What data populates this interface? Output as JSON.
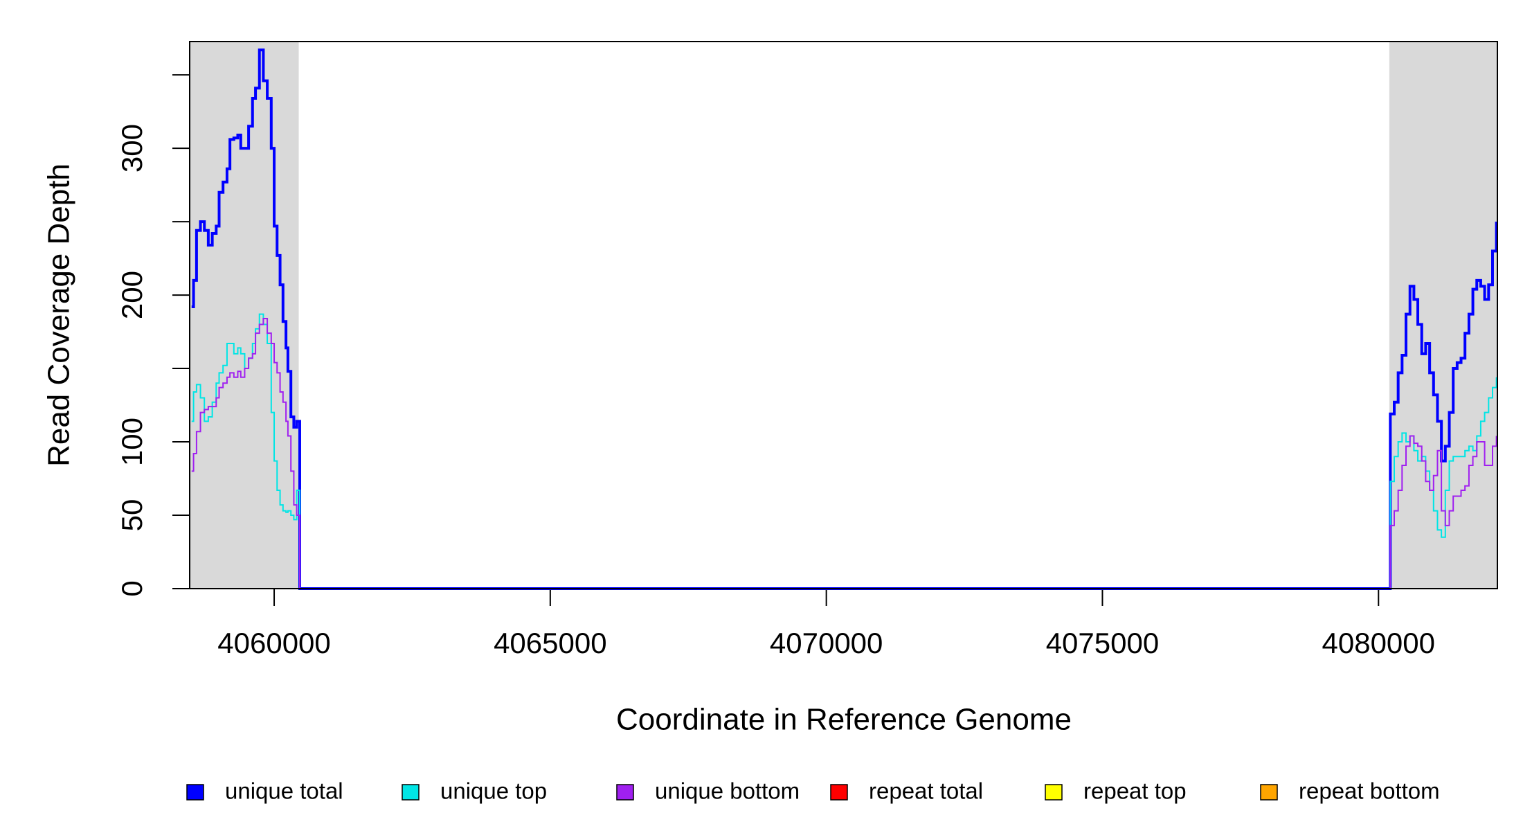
{
  "chart_data": {
    "type": "line",
    "step": true,
    "xlabel": "Coordinate in Reference Genome",
    "ylabel": "Read Coverage Depth",
    "xlim": [
      4058470,
      4082153
    ],
    "ylim": [
      0,
      372.7
    ],
    "xticks": [
      4060000,
      4065000,
      4070000,
      4075000,
      4080000
    ],
    "yticks": [
      0,
      50,
      100,
      200,
      300
    ],
    "yticks_unlabeled": [
      150,
      250,
      350
    ],
    "shaded_regions": [
      [
        4058470,
        4060445
      ],
      [
        4080196,
        4082153
      ]
    ],
    "shade_color": "#d9d9d9",
    "legend": "bottom",
    "x": [
      4058505,
      4058540,
      4058594,
      4058665,
      4058736,
      4058807,
      4058879,
      4058950,
      4059003,
      4059074,
      4059146,
      4059199,
      4059270,
      4059341,
      4059395,
      4059466,
      4059537,
      4059608,
      4059662,
      4059733,
      4059804,
      4059875,
      4059947,
      4060000,
      4060053,
      4060107,
      4060160,
      4060214,
      4060249,
      4060303,
      4060356,
      4060409,
      4060463,
      4080190,
      4080214,
      4080285,
      4080356,
      4080427,
      4080498,
      4080570,
      4080641,
      4080712,
      4080783,
      4080854,
      4080926,
      4080997,
      4081068,
      4081139,
      4081210,
      4081282,
      4081353,
      4081424,
      4081495,
      4081566,
      4081638,
      4081709,
      4081780,
      4081851,
      4081922,
      4081994,
      4082065,
      4082136
    ],
    "series": [
      {
        "name": "unique total",
        "color": "#0000ff",
        "values": [
          192,
          210,
          244,
          250,
          244,
          234,
          242,
          247,
          270,
          277,
          286,
          306,
          307,
          309,
          300,
          300,
          315,
          334,
          341,
          367,
          346,
          334,
          300,
          247,
          227,
          207,
          182,
          164,
          148,
          117,
          110,
          114,
          0,
          0,
          119,
          127,
          147,
          159,
          187,
          206,
          197,
          180,
          160,
          167,
          147,
          132,
          114,
          87,
          97,
          120,
          150,
          154,
          157,
          174,
          187,
          204,
          210,
          206,
          197,
          207,
          230,
          250
        ]
      },
      {
        "name": "unique top",
        "color": "#00e5e5",
        "values": [
          114,
          134,
          139,
          130,
          114,
          117,
          127,
          140,
          147,
          152,
          167,
          167,
          160,
          164,
          160,
          150,
          157,
          167,
          177,
          187,
          180,
          167,
          120,
          87,
          67,
          57,
          53,
          52,
          53,
          50,
          47,
          67,
          0,
          0,
          73,
          90,
          100,
          106,
          100,
          104,
          94,
          87,
          90,
          80,
          67,
          53,
          40,
          35,
          67,
          87,
          90,
          90,
          90,
          94,
          97,
          94,
          104,
          114,
          120,
          130,
          137,
          144
        ]
      },
      {
        "name": "unique bottom",
        "color": "#a020f0",
        "values": [
          80,
          92,
          107,
          120,
          122,
          124,
          124,
          130,
          137,
          140,
          144,
          147,
          144,
          148,
          144,
          150,
          157,
          160,
          174,
          180,
          184,
          174,
          167,
          154,
          147,
          134,
          127,
          114,
          104,
          80,
          57,
          50,
          0,
          0,
          43,
          53,
          67,
          84,
          97,
          104,
          99,
          97,
          87,
          73,
          67,
          77,
          94,
          53,
          43,
          53,
          63,
          63,
          67,
          70,
          84,
          90,
          100,
          100,
          84,
          84,
          97,
          104
        ]
      },
      {
        "name": "repeat total",
        "color": "#ff0000",
        "values": [
          0,
          0,
          0,
          0,
          0,
          0,
          0,
          0,
          0,
          0,
          0,
          0,
          0,
          0,
          0,
          0,
          0,
          0,
          0,
          0,
          0,
          0,
          0,
          0,
          0,
          0,
          0,
          0,
          0,
          0,
          0,
          0,
          0,
          0,
          0,
          0,
          0,
          0,
          0,
          0,
          0,
          0,
          0,
          0,
          0,
          0,
          0,
          0,
          0,
          0,
          0,
          0,
          0,
          0,
          0,
          0,
          0,
          0,
          0,
          0,
          0,
          0
        ]
      },
      {
        "name": "repeat top",
        "color": "#ffff00",
        "values": [
          0,
          0,
          0,
          0,
          0,
          0,
          0,
          0,
          0,
          0,
          0,
          0,
          0,
          0,
          0,
          0,
          0,
          0,
          0,
          0,
          0,
          0,
          0,
          0,
          0,
          0,
          0,
          0,
          0,
          0,
          0,
          0,
          0,
          0,
          0,
          0,
          0,
          0,
          0,
          0,
          0,
          0,
          0,
          0,
          0,
          0,
          0,
          0,
          0,
          0,
          0,
          0,
          0,
          0,
          0,
          0,
          0,
          0,
          0,
          0,
          0,
          0
        ]
      },
      {
        "name": "repeat bottom",
        "color": "#ffa500",
        "values": [
          0,
          0,
          0,
          0,
          0,
          0,
          0,
          0,
          0,
          0,
          0,
          0,
          0,
          0,
          0,
          0,
          0,
          0,
          0,
          0,
          0,
          0,
          0,
          0,
          0,
          0,
          0,
          0,
          0,
          0,
          0,
          0,
          0,
          0,
          0,
          0,
          0,
          0,
          0,
          0,
          0,
          0,
          0,
          0,
          0,
          0,
          0,
          0,
          0,
          0,
          0,
          0,
          0,
          0,
          0,
          0,
          0,
          0,
          0,
          0,
          0,
          0
        ]
      }
    ]
  }
}
